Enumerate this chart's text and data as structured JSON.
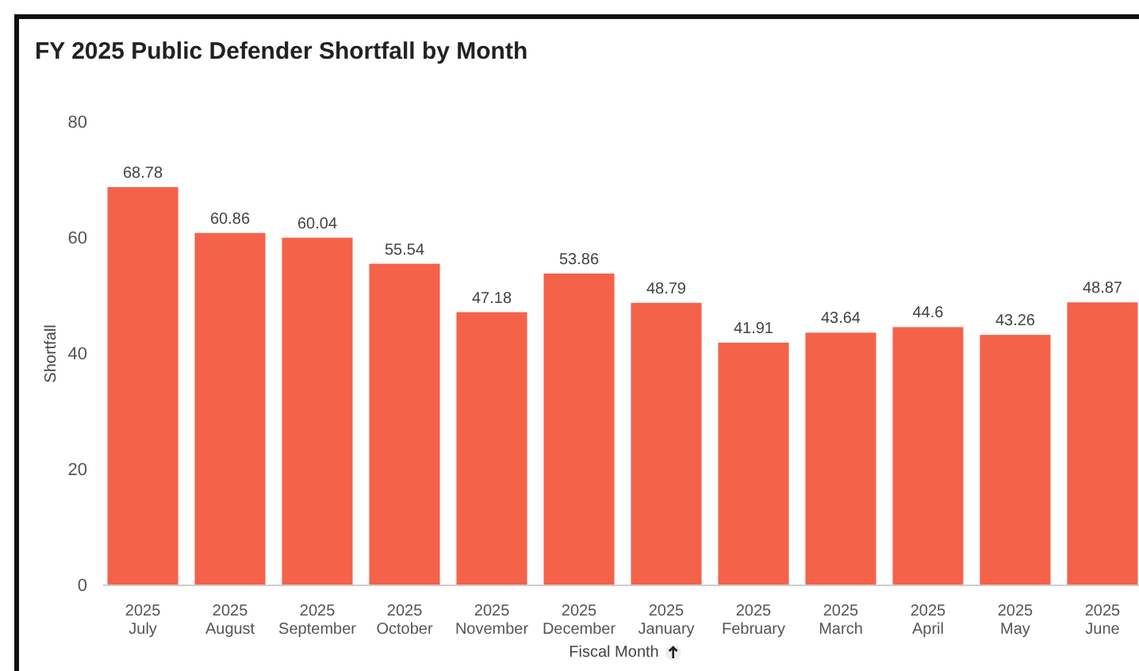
{
  "chart_data": {
    "type": "bar",
    "title": "FY 2025 Public Defender Shortfall by Month",
    "xlabel": "Fiscal Month",
    "ylabel": "Shortfall",
    "categories": [
      "2025\nJuly",
      "2025\nAugust",
      "2025\nSeptember",
      "2025\nOctober",
      "2025\nNovember",
      "2025\nDecember",
      "2025\nJanuary",
      "2025\nFebruary",
      "2025\nMarch",
      "2025\nApril",
      "2025\nMay",
      "2025\nJune"
    ],
    "values": [
      68.78,
      60.86,
      60.04,
      55.54,
      47.18,
      53.86,
      48.79,
      41.91,
      43.64,
      44.6,
      43.26,
      48.87
    ],
    "color": "#f4624a",
    "ylim": [
      0,
      80
    ],
    "yticks": [
      0,
      20,
      40,
      60,
      80
    ],
    "data_labels": true,
    "grid": false
  }
}
